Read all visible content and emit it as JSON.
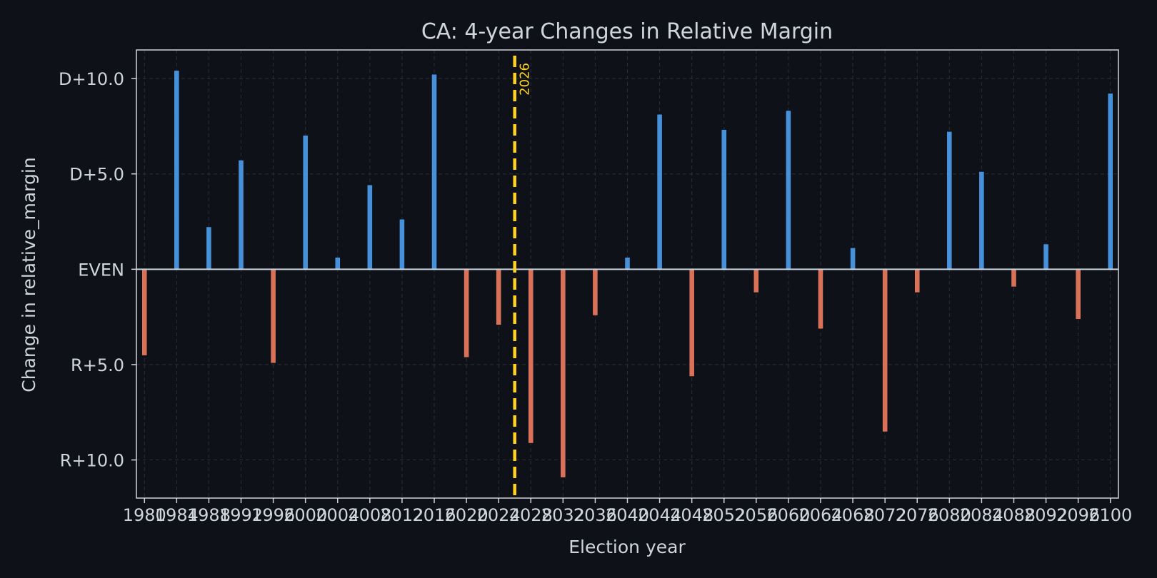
{
  "chart_data": {
    "type": "bar",
    "title": "CA: 4-year Changes in Relative Margin",
    "xlabel": "Election year",
    "ylabel": "Change in relative_margin",
    "x": [
      1980,
      1984,
      1988,
      1992,
      1996,
      2000,
      2004,
      2008,
      2012,
      2016,
      2020,
      2024,
      2028,
      2032,
      2036,
      2040,
      2044,
      2048,
      2052,
      2056,
      2060,
      2064,
      2068,
      2072,
      2076,
      2080,
      2084,
      2088,
      2092,
      2096,
      2100
    ],
    "values": [
      -4.5,
      10.4,
      2.2,
      5.7,
      -4.9,
      7.0,
      0.6,
      4.4,
      2.6,
      10.2,
      -4.6,
      -2.9,
      -9.1,
      -10.9,
      -2.4,
      0.6,
      8.1,
      -5.6,
      7.3,
      -1.2,
      8.3,
      -3.1,
      1.1,
      -8.5,
      -1.2,
      7.2,
      5.1,
      -0.9,
      1.3,
      -2.6,
      9.2
    ],
    "xlim": [
      1979,
      2101
    ],
    "ylim": [
      -12.0,
      11.5
    ],
    "yticks": [
      10,
      5,
      0,
      -5,
      -10
    ],
    "ytick_labels": [
      "D+10.0",
      "D+5.0",
      "EVEN",
      "R+5.0",
      "R+10.0"
    ],
    "xticks": [
      1980,
      1984,
      1988,
      1992,
      1996,
      2000,
      2004,
      2008,
      2012,
      2016,
      2020,
      2024,
      2028,
      2032,
      2036,
      2040,
      2044,
      2048,
      2052,
      2056,
      2060,
      2064,
      2068,
      2072,
      2076,
      2080,
      2084,
      2088,
      2092,
      2096,
      2100
    ],
    "marker": {
      "x": 2026,
      "label": "2026",
      "color": "#ffd21f"
    },
    "colors": {
      "positive": "#4d9ef0",
      "negative": "#ef7c5f",
      "background": "#0e1117",
      "axes_edge": "#d0d4dc",
      "grid": "#2a2f39",
      "zero_line": "#c9d3e0"
    },
    "grid": true
  }
}
